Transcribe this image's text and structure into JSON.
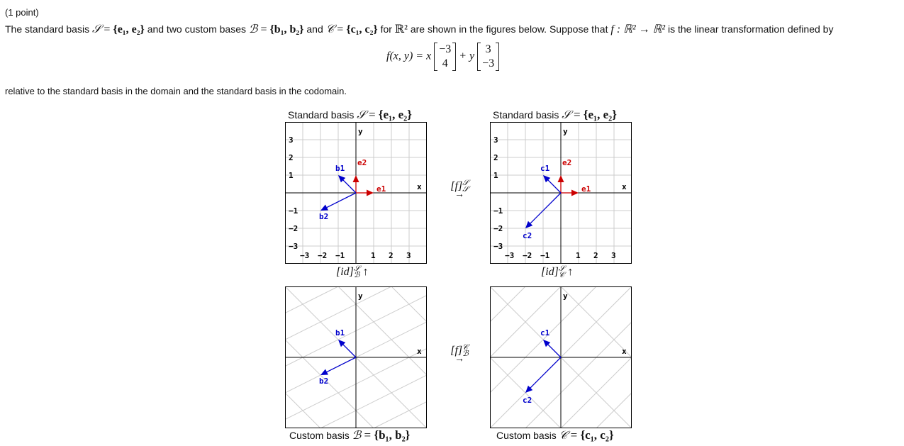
{
  "header": {
    "points": "(1 point)",
    "intro_a": "The standard basis",
    "intro_b": "and two custom bases",
    "intro_c": "and",
    "intro_d": "for",
    "intro_e": "are shown in the figures below. Suppose that",
    "intro_f": "is the linear transformation defined by",
    "relative": "relative to the standard basis in the domain and the standard basis in the codomain."
  },
  "math": {
    "S": "𝒮",
    "B": "ℬ",
    "C": "𝒞",
    "set_S": "{e₁, e₂}",
    "set_B": "{b₁, b₂}",
    "set_C": "{c₁, c₂}",
    "R2": "ℝ²",
    "f_map": "f : ℝ² → ℝ²",
    "formula_lhs": "f(x, y) = x",
    "plus_y": "+ y",
    "col1": [
      "−3",
      "4"
    ],
    "col2": [
      "3",
      "−3"
    ]
  },
  "panels": {
    "tl_title_text": "Standard basis",
    "tr_title_text": "Standard basis",
    "bl_title_text": "Custom basis",
    "br_title_text": "Custom basis",
    "tick_x": [
      "−3",
      "−2",
      "−1",
      "1",
      "2",
      "3"
    ],
    "tick_y": [
      "3",
      "2",
      "1",
      "−1",
      "−2",
      "−3"
    ],
    "axis_x": "x",
    "axis_y": "y",
    "vec_e1": "e1",
    "vec_e2": "e2",
    "vec_b1": "b1",
    "vec_b2": "b2",
    "vec_c1": "c1",
    "vec_c2": "c2"
  },
  "arrows": {
    "f_SS": "[f]",
    "f_BC": "[f]",
    "id_SB": "[id]",
    "id_SC": "[id]",
    "up": "↑",
    "right": "→",
    "sup_S": "𝒮",
    "sub_S": "𝒮",
    "sup_C": "𝒞",
    "sub_B": "ℬ",
    "sub_C": "𝒞"
  },
  "vectors": {
    "e1": [
      1,
      0
    ],
    "e2": [
      0,
      1
    ],
    "b1": [
      -1,
      1
    ],
    "b2": [
      -2,
      -1
    ],
    "c1": [
      -1,
      1
    ],
    "c2": [
      -2,
      -2
    ]
  },
  "colors": {
    "standard_vector": "#cc0000",
    "custom_vector": "#0000cc",
    "grid": "#cccccc",
    "axis": "#000000"
  }
}
